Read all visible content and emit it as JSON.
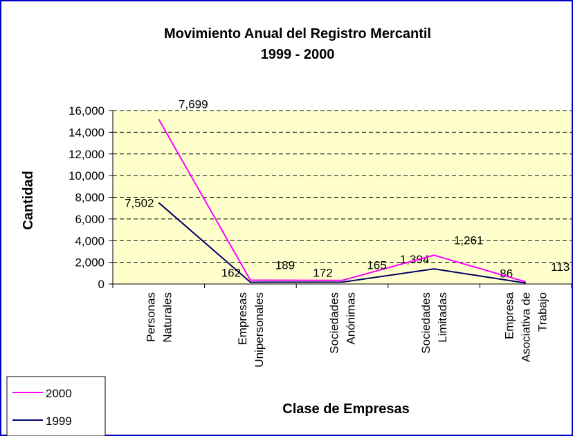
{
  "chart_data": {
    "type": "line",
    "stacked": true,
    "title": "Movimiento Anual del Registro Mercantil",
    "subtitle": "1999 - 2000",
    "y_label": "Cantidad",
    "x_label": "Clase de Empresas",
    "categories": [
      "Personas\nNaturales",
      "Empresas\nUnipersonales",
      "Sociedades\nAnónimas",
      "Sociedades\nLimitadas",
      "Empresa\nAsociativa de\nTrabajo"
    ],
    "series": [
      {
        "name": "1999",
        "color": "#000066",
        "values": [
          7502,
          162,
          172,
          1394,
          86
        ],
        "value_labels": [
          "7,502",
          "162",
          "172",
          "1,394",
          "86"
        ]
      },
      {
        "name": "2000",
        "color": "#ff00ff",
        "values": [
          7699,
          189,
          165,
          1261,
          113
        ],
        "value_labels": [
          "7,699",
          "189",
          "165",
          "1,261",
          "113"
        ]
      }
    ],
    "ylim": [
      0,
      16000
    ],
    "yticks": [
      0,
      {
        "value": 2000,
        "label": "2,000"
      },
      {
        "value": 4000,
        "label": "4,000"
      },
      {
        "value": 6000,
        "label": "6,000"
      },
      {
        "value": 8000,
        "label": "8,000"
      },
      {
        "value": 10000,
        "label": "10,000"
      },
      {
        "value": 12000,
        "label": "12,000"
      },
      {
        "value": 14000,
        "label": "14,000"
      },
      {
        "value": 16000,
        "label": "16,000"
      }
    ],
    "grid": true,
    "legend": "bottom-left",
    "plot_background": "#ffffcc"
  }
}
